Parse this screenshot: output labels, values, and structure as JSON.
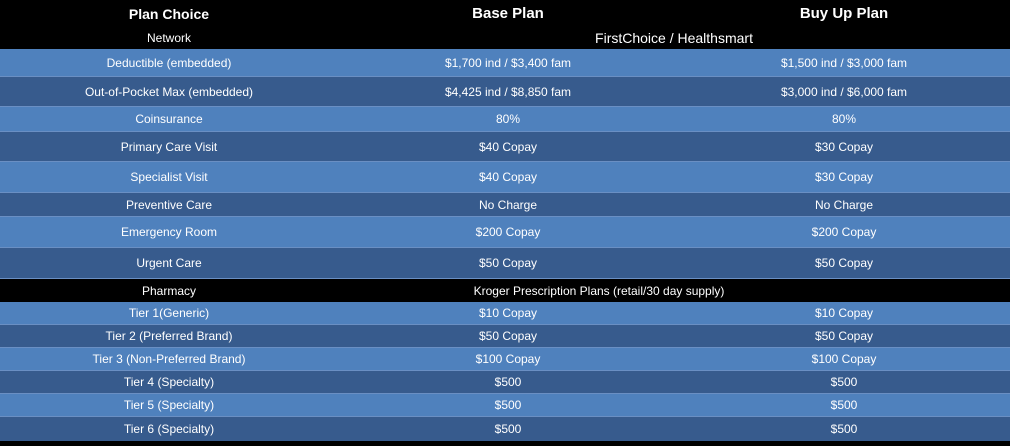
{
  "header": {
    "plan_choice": "Plan Choice",
    "base_plan": "Base Plan",
    "buy_up_plan": "Buy Up Plan"
  },
  "network": {
    "label": "Network",
    "value": "FirstChoice / Healthsmart"
  },
  "medical_rows": [
    {
      "label": "Deductible (embedded)",
      "base": "$1,700 ind / $3,400 fam",
      "buyup": "$1,500 ind / $3,000 fam"
    },
    {
      "label": "Out-of-Pocket Max (embedded)",
      "base": "$4,425 ind / $8,850 fam",
      "buyup": "$3,000 ind / $6,000 fam"
    },
    {
      "label": "Coinsurance",
      "base": "80%",
      "buyup": "80%"
    },
    {
      "label": "Primary Care Visit",
      "base": "$40 Copay",
      "buyup": "$30 Copay"
    },
    {
      "label": "Specialist Visit",
      "base": "$40 Copay",
      "buyup": "$30 Copay"
    },
    {
      "label": "Preventive Care",
      "base": "No Charge",
      "buyup": "No Charge"
    },
    {
      "label": "Emergency Room",
      "base": "$200 Copay",
      "buyup": "$200 Copay"
    },
    {
      "label": "Urgent Care",
      "base": "$50 Copay",
      "buyup": "$50 Copay"
    }
  ],
  "pharmacy": {
    "label": "Pharmacy",
    "value": "Kroger Prescription Plans (retail/30 day supply)"
  },
  "pharmacy_rows": [
    {
      "label": "Tier 1(Generic)",
      "base": "$10 Copay",
      "buyup": "$10 Copay"
    },
    {
      "label": "Tier 2 (Preferred Brand)",
      "base": "$50 Copay",
      "buyup": "$50 Copay"
    },
    {
      "label": "Tier 3 (Non-Preferred Brand)",
      "base": "$100 Copay",
      "buyup": "$100 Copay"
    },
    {
      "label": "Tier 4 (Specialty)",
      "base": "$500",
      "buyup": "$500"
    },
    {
      "label": "Tier 5 (Specialty)",
      "base": "$500",
      "buyup": "$500"
    },
    {
      "label": "Tier 6 (Specialty)",
      "base": "$500",
      "buyup": "$500"
    }
  ]
}
